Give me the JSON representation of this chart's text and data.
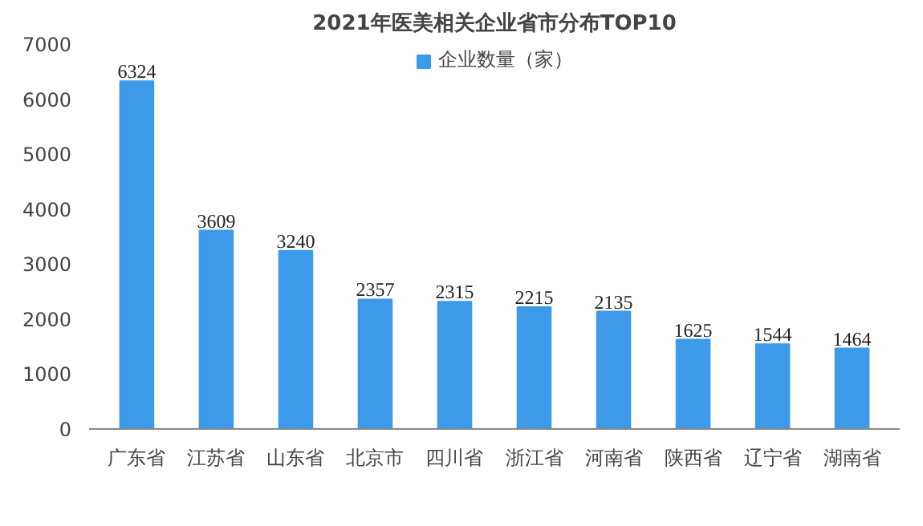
{
  "chart_data": {
    "type": "bar",
    "title": "2021年医美相关企业省市分布TOP10",
    "categories": [
      "广东省",
      "江苏省",
      "山东省",
      "北京市",
      "四川省",
      "浙江省",
      "河南省",
      "陕西省",
      "辽宁省",
      "湖南省"
    ],
    "series": [
      {
        "name": "企业数量（家）",
        "color": "#3d9ae8",
        "values": [
          6324,
          3609,
          3240,
          2357,
          2315,
          2215,
          2135,
          1625,
          1544,
          1464
        ]
      }
    ],
    "ylim": [
      0,
      7000
    ],
    "yticks": [
      0,
      1000,
      2000,
      3000,
      4000,
      5000,
      6000,
      7000
    ],
    "data_labels": true,
    "legend": "top",
    "grid": false
  }
}
